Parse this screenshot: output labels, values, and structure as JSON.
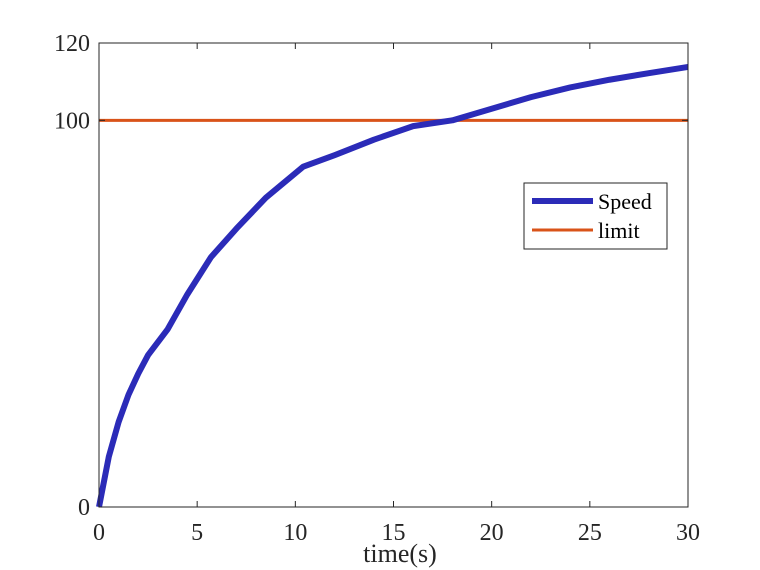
{
  "chart_data": {
    "type": "line",
    "title": "",
    "xlabel": "time(s)",
    "ylabel": "",
    "xlim": [
      0,
      30
    ],
    "ylim": [
      0,
      120
    ],
    "xticks": [
      0,
      5,
      10,
      15,
      20,
      25,
      30
    ],
    "yticks": [
      0,
      100,
      120
    ],
    "xtick_labels": [
      "0",
      "5",
      "10",
      "15",
      "20",
      "25",
      "30"
    ],
    "ytick_labels": [
      "0",
      "100",
      "120"
    ],
    "grid": false,
    "legend_position": "east-inside",
    "series": [
      {
        "name": "Speed",
        "color": "#2b2bb8",
        "line_width": 6,
        "x": [
          0,
          0.5,
          1,
          1.5,
          2,
          2.5,
          3.5,
          4.5,
          5.7,
          7,
          8.5,
          10.4,
          12,
          14,
          16,
          18,
          20,
          22,
          24,
          26,
          28,
          30
        ],
        "values": [
          0,
          13,
          22,
          29,
          34.5,
          39.3,
          46,
          55,
          64.6,
          72,
          80,
          88,
          91,
          95,
          98.5,
          100,
          103,
          106,
          108.5,
          110.5,
          112.2,
          113.8
        ]
      },
      {
        "name": "limit",
        "color": "#d95319",
        "line_width": 3,
        "x": [
          0,
          30
        ],
        "values": [
          100,
          100
        ]
      }
    ]
  },
  "legend": {
    "items": [
      {
        "label": "Speed",
        "color": "#2b2bb8"
      },
      {
        "label": "limit",
        "color": "#d95319"
      }
    ]
  }
}
